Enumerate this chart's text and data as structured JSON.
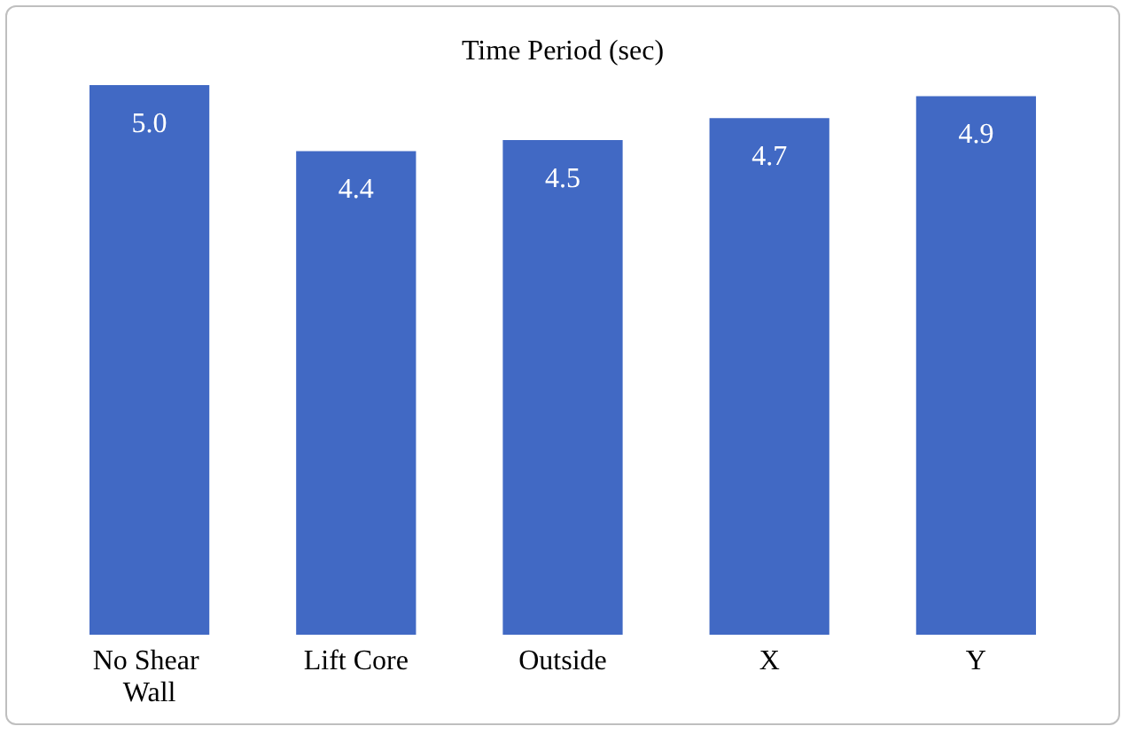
{
  "chart_data": {
    "type": "bar",
    "title": "Time Period (sec)",
    "categories": [
      "No Shear Wall",
      "Lift Core",
      "Outside",
      "X",
      "Y"
    ],
    "values": [
      5.0,
      4.4,
      4.5,
      4.7,
      4.9
    ],
    "color": "#4169c4",
    "value_labels": [
      "5.0",
      "4.4",
      "4.5",
      "4.7",
      "4.9"
    ],
    "tick_labels": "x",
    "grid": false
  }
}
